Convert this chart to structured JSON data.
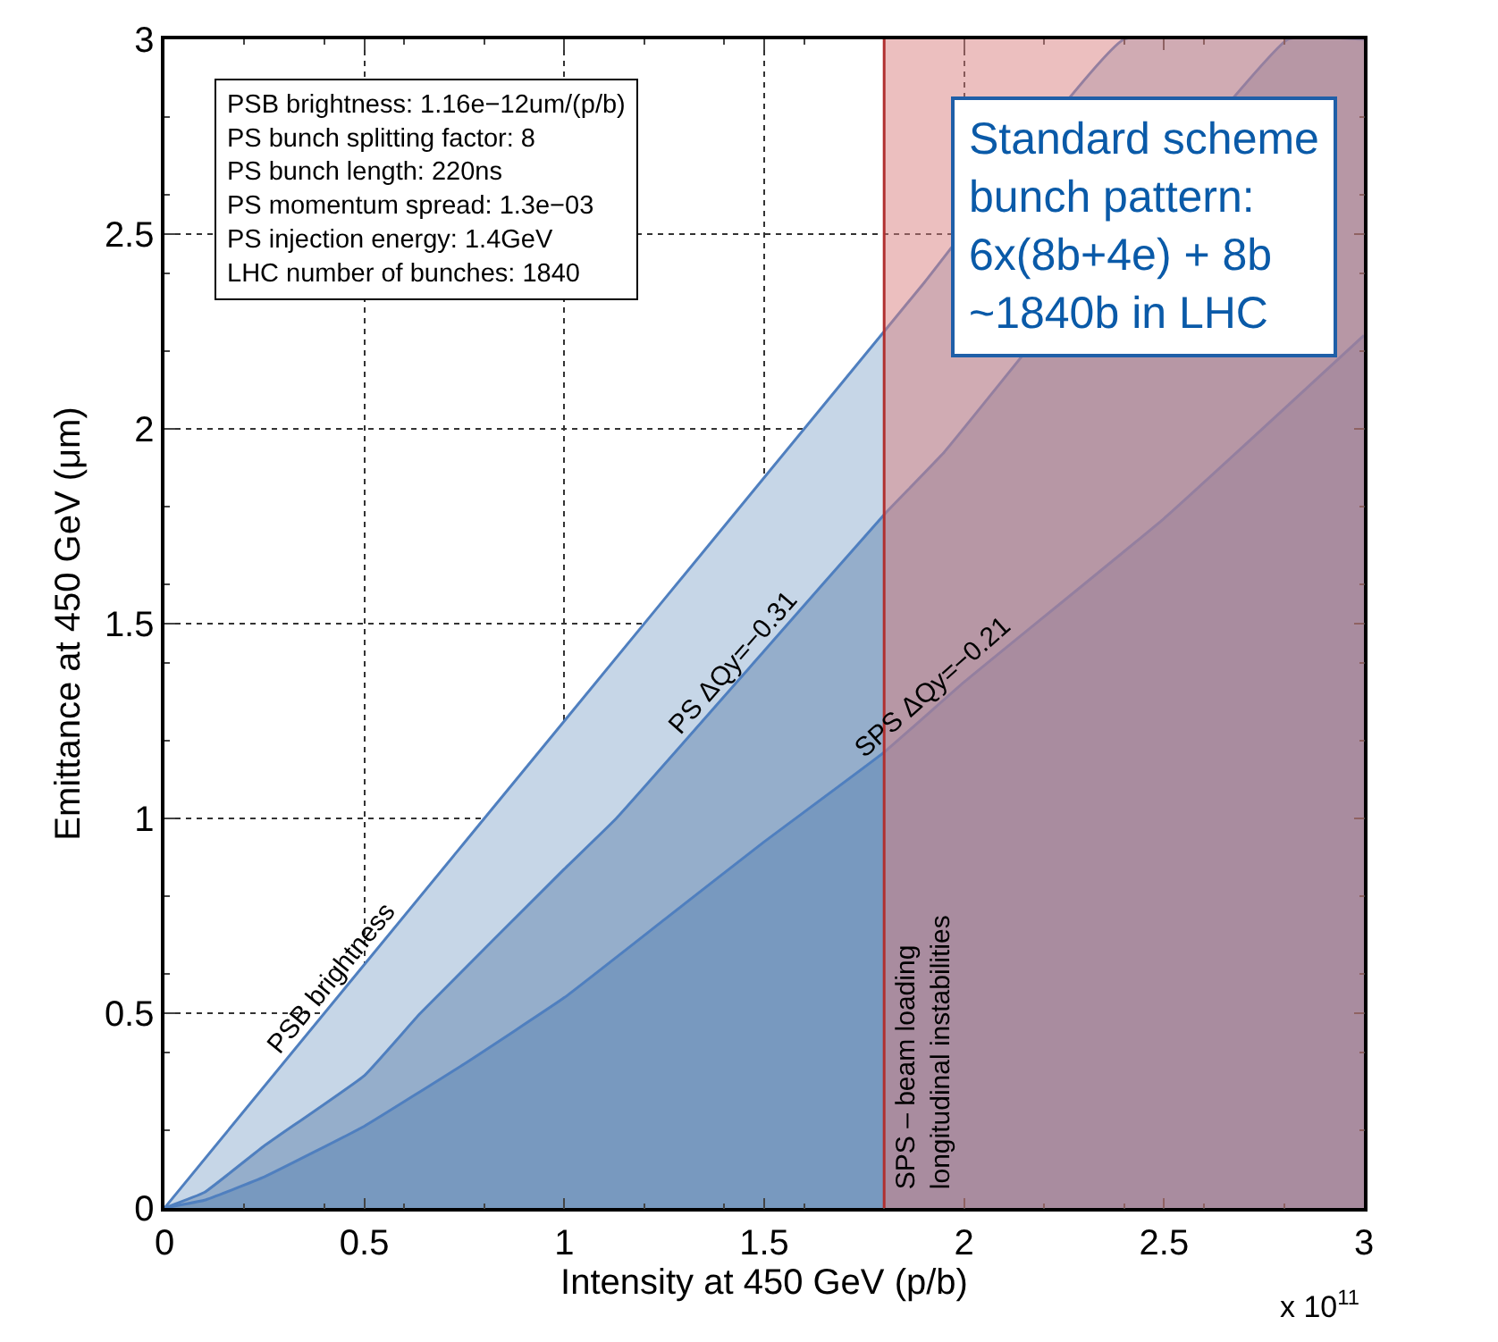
{
  "chart_data": {
    "type": "area",
    "xlabel": "Intensity at 450 GeV (p/b)",
    "ylabel": "Emittance at 450 GeV (μm)",
    "series": [
      {
        "name": "PSB brightness",
        "color": "#c6d6e7",
        "x": [
          0,
          0.5,
          1,
          1.5,
          1.9,
          2.4,
          3
        ],
        "values": [
          0,
          0.625,
          1.25,
          1.875,
          2.375,
          3.0,
          3.0
        ]
      },
      {
        "name": "PS ΔQy=−0.31",
        "color": "#95aecb",
        "x": [
          0,
          0.1,
          0.25,
          0.5,
          0.64,
          1.0,
          1.13,
          1.5,
          1.8,
          1.95,
          2.81,
          3
        ],
        "values": [
          0,
          0.04,
          0.16,
          0.34,
          0.5,
          0.87,
          1.0,
          1.43,
          1.78,
          1.94,
          3.0,
          3.0
        ]
      },
      {
        "name": "SPS ΔQy=−0.21",
        "color": "#7899bf",
        "x": [
          0,
          0.1,
          0.25,
          0.5,
          0.75,
          1.0,
          1.25,
          1.5,
          1.8,
          2.0,
          2.5,
          3.0
        ],
        "values": [
          0,
          0.02,
          0.08,
          0.21,
          0.37,
          0.54,
          0.74,
          0.94,
          1.17,
          1.35,
          1.77,
          2.24
        ]
      }
    ],
    "xlim": [
      0,
      3
    ],
    "ylim": [
      0,
      3
    ],
    "xticks": [
      0,
      0.5,
      1,
      1.5,
      2,
      2.5,
      3
    ],
    "yticks": [
      0,
      0.5,
      1,
      1.5,
      2,
      2.5,
      3
    ],
    "grid": true,
    "legend": false,
    "bands": [
      {
        "axis": "x",
        "from": 1.8,
        "to": 3,
        "color": "#d97f7f"
      }
    ],
    "ref_lines": [
      {
        "axis": "x",
        "value": 1.8,
        "label": "SPS – beam loading\nlongitudinal instabilities",
        "color": "#b03030"
      }
    ],
    "annotations": [
      "x 10$^{11}$",
      "PSB brightness: 1.16e−12um/(p/b)\nPS bunch splitting factor: 8\nPS bunch length: 220ns\nPS momentum spread: 1.3e−03\nPS injection energy: 1.4GeV\nLHC number of bunches: 1840",
      "Standard scheme\nbunch pattern:\n6x(8b+4e) + 8b\n~1840b in LHC"
    ]
  }
}
